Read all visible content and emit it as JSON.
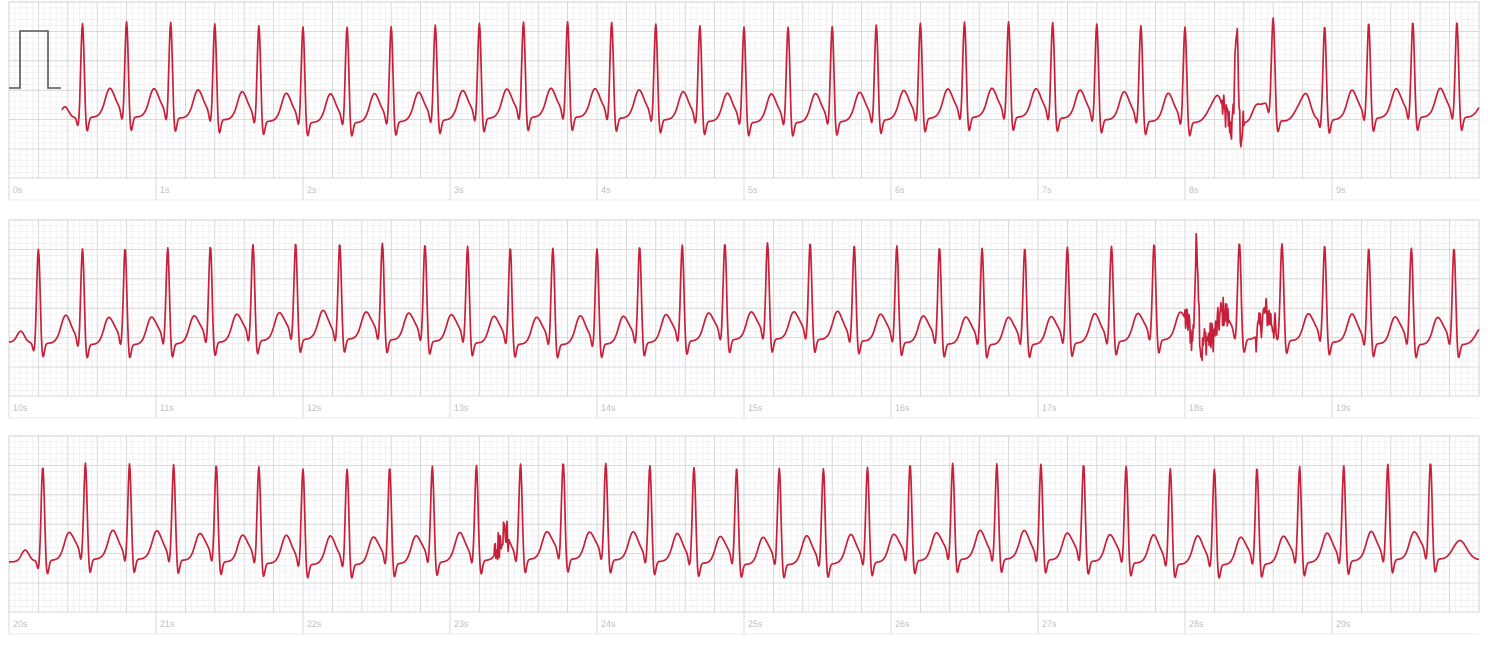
{
  "chart_data": {
    "type": "line",
    "title": "",
    "xlabel": "",
    "ylabel": "",
    "grid": true,
    "strips": [
      {
        "xlim": [
          0,
          10
        ],
        "tick_labels": [
          "0s",
          "1s",
          "2s",
          "3s",
          "4s",
          "5s",
          "6s",
          "7s",
          "8s",
          "9s"
        ],
        "calibration_pulse": true,
        "beats": [
          0.5,
          0.8,
          1.1,
          1.4,
          1.7,
          2.0,
          2.3,
          2.6,
          2.9,
          3.2,
          3.5,
          3.8,
          4.1,
          4.4,
          4.7,
          5.0,
          5.3,
          5.6,
          5.9,
          6.2,
          6.5,
          6.8,
          7.1,
          7.4,
          7.7,
          8.0,
          8.35,
          8.6,
          8.95,
          9.25,
          9.55,
          9.85
        ],
        "noise": [
          [
            8.25,
            8.4
          ]
        ]
      },
      {
        "xlim": [
          10,
          20
        ],
        "tick_labels": [
          "10s",
          "11s",
          "12s",
          "13s",
          "14s",
          "15s",
          "16s",
          "17s",
          "18s",
          "19s"
        ],
        "calibration_pulse": false,
        "beats": [
          10.2,
          10.5,
          10.79,
          11.08,
          11.37,
          11.66,
          11.95,
          12.25,
          12.54,
          12.83,
          13.12,
          13.41,
          13.7,
          14.0,
          14.29,
          14.58,
          14.87,
          15.16,
          15.45,
          15.75,
          16.04,
          16.33,
          16.62,
          16.91,
          17.2,
          17.5,
          17.79,
          18.08,
          18.37,
          18.66,
          18.95,
          19.25,
          19.54,
          19.83
        ],
        "noise": [
          [
            18.0,
            18.3
          ],
          [
            18.48,
            18.62
          ]
        ]
      },
      {
        "xlim": [
          20,
          30
        ],
        "tick_labels": [
          "20s",
          "21s",
          "22s",
          "23s",
          "24s",
          "25s",
          "26s",
          "27s",
          "28s",
          "29s"
        ],
        "calibration_pulse": false,
        "beats": [
          20.23,
          20.52,
          20.82,
          21.12,
          21.41,
          21.7,
          22.0,
          22.3,
          22.59,
          22.88,
          23.18,
          23.48,
          23.77,
          24.06,
          24.36,
          24.66,
          24.95,
          25.24,
          25.54,
          25.84,
          26.13,
          26.42,
          26.72,
          27.02,
          27.31,
          27.6,
          27.9,
          28.2,
          28.49,
          28.78,
          29.08,
          29.38,
          29.67
        ],
        "noise": [
          [
            23.3,
            23.4
          ]
        ]
      }
    ],
    "colors": {
      "trace": "#c8203a",
      "grid_minor": "#ebebeb",
      "grid_major": "#cfcfcf",
      "calibration": "#555555"
    }
  }
}
